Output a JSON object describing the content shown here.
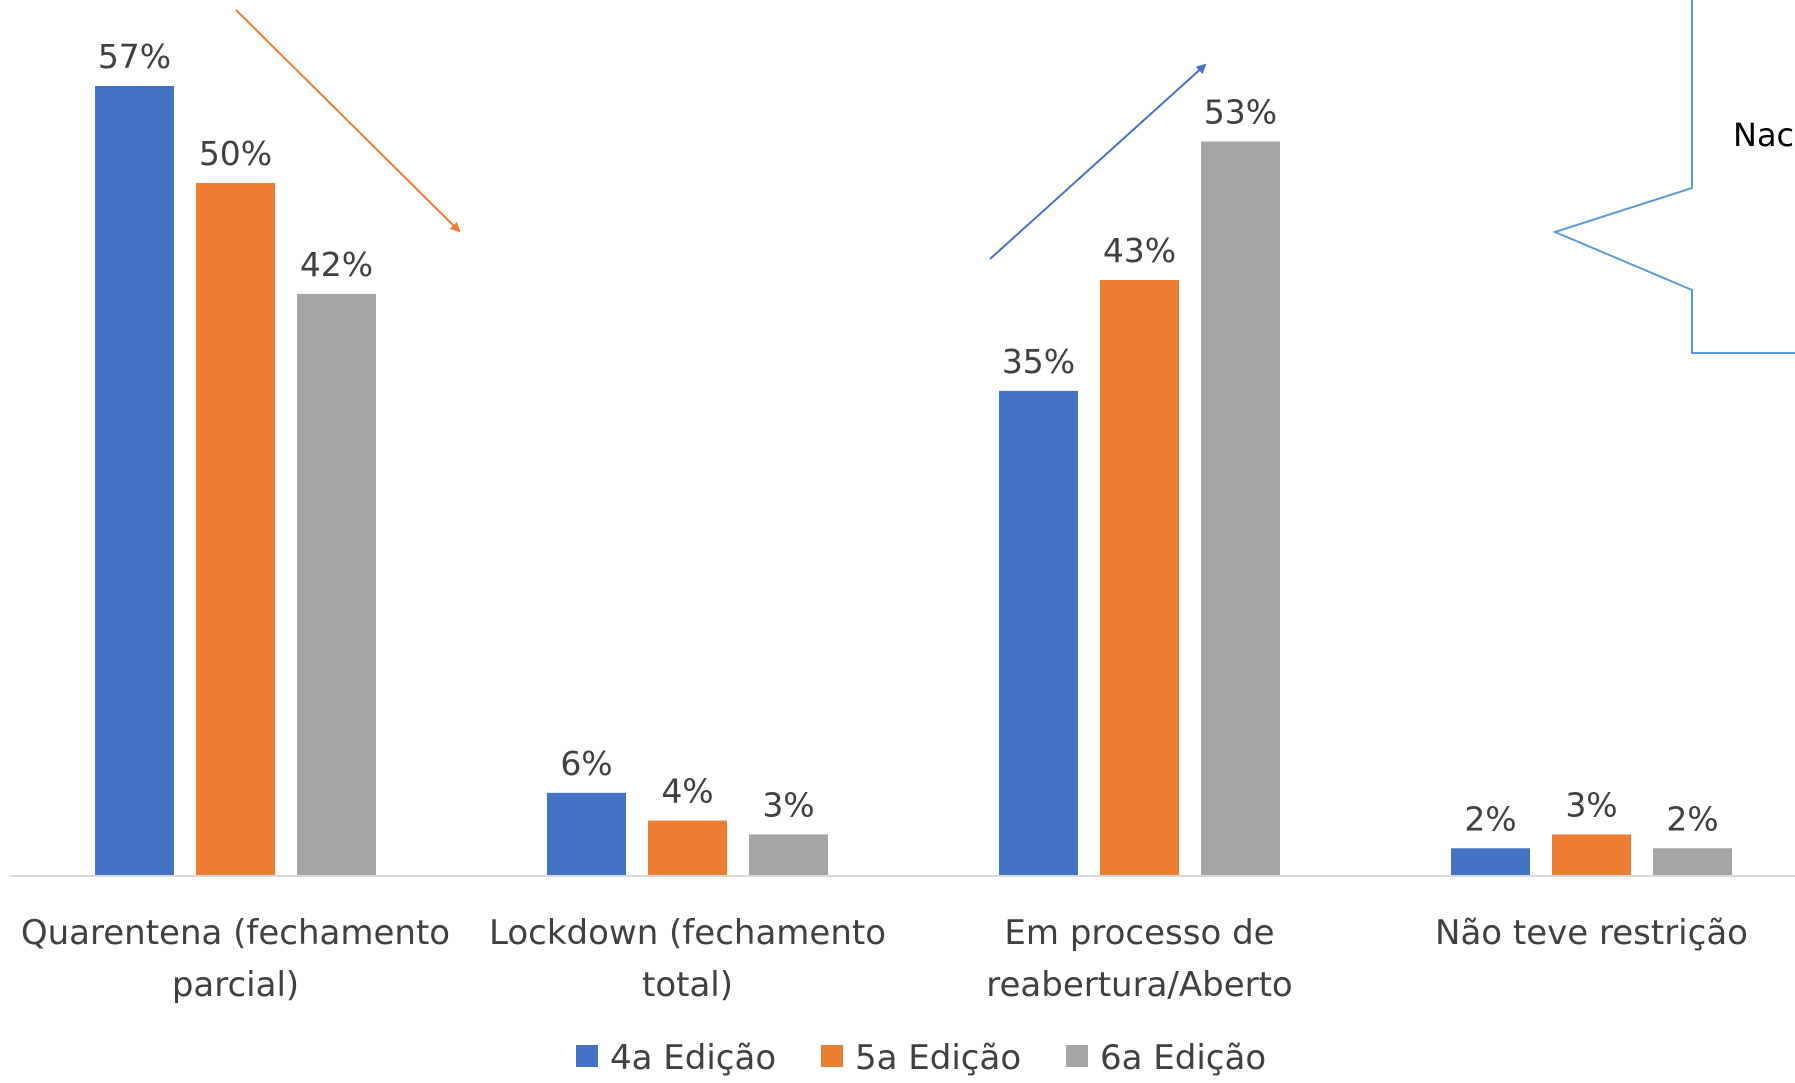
{
  "chart_data": {
    "type": "bar",
    "categories": [
      [
        "Quarentena (fechamento",
        "parcial)"
      ],
      [
        "Lockdown (fechamento",
        "total)"
      ],
      [
        "Em processo de",
        "reabertura/Aberto"
      ],
      [
        "Não teve restrição"
      ]
    ],
    "series": [
      {
        "name": "4a Edição",
        "color": "#4472C4",
        "values": [
          57,
          6,
          35,
          2
        ],
        "labels": [
          "57%",
          "6%",
          "35%",
          "2%"
        ]
      },
      {
        "name": "5a Edição",
        "color": "#ED7D31",
        "values": [
          50,
          4,
          43,
          3
        ],
        "labels": [
          "50%",
          "4%",
          "43%",
          "3%"
        ]
      },
      {
        "name": "6a Edição",
        "color": "#A5A5A5",
        "values": [
          42,
          3,
          53,
          2
        ],
        "labels": [
          "42%",
          "3%",
          "53%",
          "2%"
        ]
      }
    ],
    "ylim": [
      0,
      60
    ],
    "grid": false,
    "legend_position": "bottom",
    "annotations": {
      "callout_text": "Nac",
      "trend_arrows": [
        {
          "direction": "down",
          "color": "#ED7D31"
        },
        {
          "direction": "up",
          "color": "#4472C4"
        }
      ]
    }
  }
}
